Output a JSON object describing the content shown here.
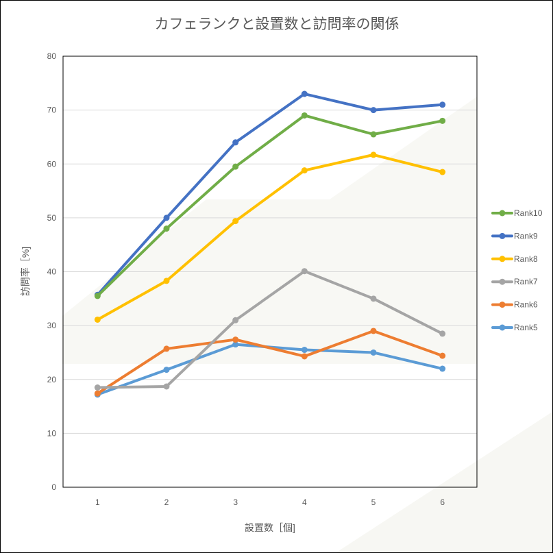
{
  "chart_data": {
    "type": "line",
    "title": "カフェランクと設置数と訪問率の関係",
    "xlabel": "設置数［個]",
    "ylabel": "訪問率［%]",
    "x": [
      1,
      2,
      3,
      4,
      5,
      6
    ],
    "ylim": [
      0,
      80
    ],
    "yticks": [
      0,
      10,
      20,
      30,
      40,
      50,
      60,
      70,
      80
    ],
    "grid": "horizontal",
    "legend_position": "right",
    "series": [
      {
        "name": "Rank10",
        "color": "#70AD47",
        "values": [
          35.5,
          48,
          59.5,
          69,
          65.5,
          68
        ]
      },
      {
        "name": "Rank9",
        "color": "#4472C4",
        "values": [
          35.7,
          50,
          64,
          73,
          70,
          71
        ]
      },
      {
        "name": "Rank8",
        "color": "#FFC000",
        "values": [
          31.1,
          38.3,
          49.4,
          58.8,
          61.7,
          58.5
        ]
      },
      {
        "name": "Rank7",
        "color": "#A5A5A5",
        "values": [
          18.5,
          18.7,
          31,
          40.1,
          35,
          28.5
        ]
      },
      {
        "name": "Rank6",
        "color": "#ED7D31",
        "values": [
          17.4,
          25.7,
          27.4,
          24.3,
          29,
          24.4
        ]
      },
      {
        "name": "Rank5",
        "color": "#5B9BD5",
        "values": [
          17.2,
          21.8,
          26.5,
          25.5,
          25,
          22
        ]
      }
    ]
  }
}
